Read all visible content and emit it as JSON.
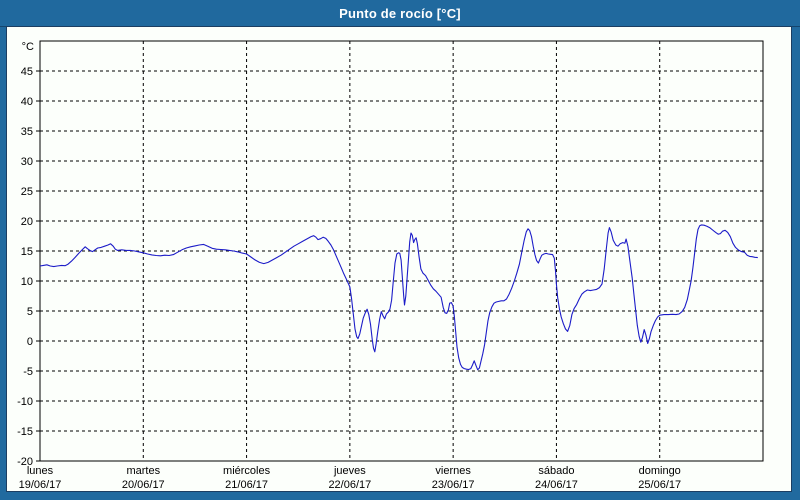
{
  "window": {
    "title": "Punto de rocío [°C]"
  },
  "colors": {
    "titlebar_bg": "#20699e",
    "frame_bg": "#216a9f",
    "panel_bg": "#fcfffb",
    "panel_border": "#1c3e62",
    "grid": "#000000",
    "axis": "#000000",
    "text": "#000000",
    "line": "#1c1cc8"
  },
  "y_axis": {
    "unit": "°C",
    "min": -20,
    "max": 50,
    "tick_step": 5,
    "tick_labels": [
      "45",
      "40",
      "35",
      "30",
      "25",
      "20",
      "15",
      "10",
      "5",
      "0",
      "-5",
      "-10",
      "-15",
      "-20"
    ],
    "tick_values": [
      45,
      40,
      35,
      30,
      25,
      20,
      15,
      10,
      5,
      0,
      -5,
      -10,
      -15,
      -20
    ]
  },
  "x_axis": {
    "days": [
      {
        "name": "lunes",
        "date": "19/06/17"
      },
      {
        "name": "martes",
        "date": "20/06/17"
      },
      {
        "name": "miércoles",
        "date": "21/06/17"
      },
      {
        "name": "jueves",
        "date": "22/06/17"
      },
      {
        "name": "viernes",
        "date": "23/06/17"
      },
      {
        "name": "sábado",
        "date": "24/06/17"
      },
      {
        "name": "domingo",
        "date": "25/06/17"
      }
    ]
  },
  "chart_data": {
    "type": "line",
    "title": "Punto de rocío [°C]",
    "ylabel": "°C",
    "ylim": [
      -20,
      50
    ],
    "x_unit": "hours from lunes 19/06/17 00:00",
    "x_range": [
      0,
      168
    ],
    "grid": "dashed",
    "legend": "none",
    "series": [
      {
        "name": "punto_de_rocio",
        "color": "#1c1cc8",
        "points": [
          [
            0,
            12.5
          ],
          [
            0.8,
            12.6
          ],
          [
            1.6,
            12.7
          ],
          [
            2.4,
            12.5
          ],
          [
            3.2,
            12.4
          ],
          [
            4,
            12.5
          ],
          [
            5,
            12.6
          ],
          [
            5.8,
            12.55
          ],
          [
            6.5,
            12.8
          ],
          [
            7.3,
            13.3
          ],
          [
            8.1,
            13.9
          ],
          [
            9,
            14.6
          ],
          [
            9.8,
            15.2
          ],
          [
            10.5,
            15.7
          ],
          [
            11,
            15.4
          ],
          [
            11.6,
            15.1
          ],
          [
            12.2,
            14.9
          ],
          [
            12.8,
            15.2
          ],
          [
            13.4,
            15.5
          ],
          [
            14.2,
            15.6
          ],
          [
            15,
            15.8
          ],
          [
            15.8,
            16.0
          ],
          [
            16.4,
            16.2
          ],
          [
            17,
            15.8
          ],
          [
            17.5,
            15.3
          ],
          [
            18,
            15.1
          ],
          [
            19,
            15.2
          ],
          [
            20,
            15.1
          ],
          [
            21,
            15.1
          ],
          [
            22,
            15.0
          ],
          [
            23,
            14.85
          ],
          [
            24,
            14.7
          ],
          [
            25,
            14.5
          ],
          [
            26,
            14.35
          ],
          [
            27,
            14.25
          ],
          [
            28,
            14.2
          ],
          [
            29,
            14.3
          ],
          [
            30,
            14.25
          ],
          [
            31,
            14.4
          ],
          [
            32,
            14.8
          ],
          [
            33,
            15.2
          ],
          [
            34,
            15.5
          ],
          [
            35,
            15.7
          ],
          [
            36,
            15.85
          ],
          [
            37,
            16.0
          ],
          [
            38,
            16.1
          ],
          [
            39,
            15.8
          ],
          [
            40,
            15.45
          ],
          [
            41,
            15.3
          ],
          [
            42,
            15.25
          ],
          [
            43,
            15.2
          ],
          [
            44,
            15.1
          ],
          [
            45,
            15.0
          ],
          [
            46,
            14.85
          ],
          [
            47,
            14.65
          ],
          [
            48,
            14.5
          ],
          [
            49,
            14.0
          ],
          [
            50,
            13.5
          ],
          [
            51,
            13.1
          ],
          [
            52,
            12.9
          ],
          [
            53,
            13.1
          ],
          [
            54,
            13.5
          ],
          [
            55,
            13.9
          ],
          [
            56,
            14.3
          ],
          [
            57,
            14.8
          ],
          [
            58,
            15.3
          ],
          [
            59,
            15.8
          ],
          [
            60,
            16.2
          ],
          [
            61,
            16.6
          ],
          [
            62,
            17.0
          ],
          [
            63,
            17.4
          ],
          [
            63.6,
            17.55
          ],
          [
            64.1,
            17.3
          ],
          [
            64.6,
            16.9
          ],
          [
            65.2,
            17.05
          ],
          [
            65.8,
            17.3
          ],
          [
            66.4,
            17.1
          ],
          [
            67,
            16.6
          ],
          [
            67.6,
            16.0
          ],
          [
            68.2,
            15.2
          ],
          [
            68.8,
            14.2
          ],
          [
            69.4,
            13.2
          ],
          [
            70,
            12.2
          ],
          [
            70.6,
            11.2
          ],
          [
            71.2,
            10.3
          ],
          [
            72,
            9.0
          ],
          [
            72.4,
            7.0
          ],
          [
            72.8,
            4.5
          ],
          [
            73.2,
            2.0
          ],
          [
            73.6,
            0.7
          ],
          [
            73.9,
            0.4
          ],
          [
            74.3,
            1.2
          ],
          [
            74.7,
            2.5
          ],
          [
            75.1,
            3.8
          ],
          [
            75.6,
            4.7
          ],
          [
            76,
            5.3
          ],
          [
            76.4,
            4.4
          ],
          [
            76.8,
            2.8
          ],
          [
            77.2,
            0.3
          ],
          [
            77.5,
            -1.2
          ],
          [
            77.8,
            -1.8
          ],
          [
            78.1,
            -0.5
          ],
          [
            78.5,
            1.6
          ],
          [
            78.9,
            3.6
          ],
          [
            79.3,
            4.9
          ],
          [
            79.7,
            4.2
          ],
          [
            80.1,
            3.7
          ],
          [
            80.5,
            4.5
          ],
          [
            80.9,
            4.8
          ],
          [
            81.3,
            5.3
          ],
          [
            81.7,
            6.8
          ],
          [
            82.1,
            10.0
          ],
          [
            82.5,
            13.0
          ],
          [
            82.9,
            14.5
          ],
          [
            83.3,
            14.7
          ],
          [
            83.6,
            14.6
          ],
          [
            83.9,
            13.5
          ],
          [
            84.2,
            10.5
          ],
          [
            84.5,
            7.5
          ],
          [
            84.7,
            6.0
          ],
          [
            85,
            7.5
          ],
          [
            85.3,
            10.5
          ],
          [
            85.6,
            13.5
          ],
          [
            85.9,
            16.5
          ],
          [
            86.2,
            18.0
          ],
          [
            86.5,
            17.6
          ],
          [
            86.8,
            16.4
          ],
          [
            87.1,
            16.9
          ],
          [
            87.4,
            17.2
          ],
          [
            87.7,
            16.2
          ],
          [
            88.1,
            14.0
          ],
          [
            88.5,
            12.0
          ],
          [
            89,
            11.3
          ],
          [
            89.6,
            10.9
          ],
          [
            90.2,
            10.1
          ],
          [
            90.8,
            9.3
          ],
          [
            91.4,
            8.7
          ],
          [
            92,
            8.3
          ],
          [
            92.6,
            7.8
          ],
          [
            93.2,
            7.3
          ],
          [
            93.7,
            5.6
          ],
          [
            94.1,
            4.7
          ],
          [
            94.5,
            4.6
          ],
          [
            94.9,
            5.2
          ],
          [
            95.2,
            6.3
          ],
          [
            95.6,
            6.4
          ],
          [
            96,
            5.8
          ],
          [
            96.3,
            4.0
          ],
          [
            96.6,
            1.5
          ],
          [
            96.9,
            -1.0
          ],
          [
            97.3,
            -2.8
          ],
          [
            97.7,
            -3.9
          ],
          [
            98.1,
            -4.4
          ],
          [
            98.6,
            -4.6
          ],
          [
            99.1,
            -4.7
          ],
          [
            99.6,
            -4.75
          ],
          [
            100.1,
            -4.6
          ],
          [
            100.5,
            -4.0
          ],
          [
            100.9,
            -3.3
          ],
          [
            101.3,
            -4.1
          ],
          [
            101.7,
            -4.8
          ],
          [
            102.1,
            -4.5
          ],
          [
            102.5,
            -3.3
          ],
          [
            102.9,
            -2.1
          ],
          [
            103.3,
            -0.6
          ],
          [
            103.7,
            1.4
          ],
          [
            104.1,
            3.4
          ],
          [
            104.5,
            4.7
          ],
          [
            105,
            5.7
          ],
          [
            105.5,
            6.3
          ],
          [
            106,
            6.5
          ],
          [
            106.6,
            6.6
          ],
          [
            107.2,
            6.7
          ],
          [
            107.8,
            6.7
          ],
          [
            108.4,
            7.0
          ],
          [
            109,
            7.8
          ],
          [
            109.6,
            8.8
          ],
          [
            110.2,
            10.0
          ],
          [
            110.8,
            11.3
          ],
          [
            111.4,
            12.8
          ],
          [
            112,
            15.0
          ],
          [
            112.5,
            16.8
          ],
          [
            113,
            18.2
          ],
          [
            113.4,
            18.7
          ],
          [
            113.8,
            18.4
          ],
          [
            114.2,
            17.4
          ],
          [
            114.6,
            15.8
          ],
          [
            115,
            14.4
          ],
          [
            115.4,
            13.4
          ],
          [
            115.8,
            13.0
          ],
          [
            116.2,
            13.7
          ],
          [
            116.6,
            14.3
          ],
          [
            117.1,
            14.5
          ],
          [
            117.6,
            14.6
          ],
          [
            118.1,
            14.5
          ],
          [
            118.6,
            14.45
          ],
          [
            119.1,
            14.4
          ],
          [
            119.5,
            13.8
          ],
          [
            119.8,
            11.5
          ],
          [
            120,
            9.5
          ],
          [
            120.3,
            7.2
          ],
          [
            120.7,
            5.4
          ],
          [
            121.1,
            4.0
          ],
          [
            121.6,
            2.9
          ],
          [
            122.1,
            2.0
          ],
          [
            122.6,
            1.6
          ],
          [
            123.1,
            2.6
          ],
          [
            123.6,
            4.4
          ],
          [
            124.1,
            5.4
          ],
          [
            124.7,
            6.1
          ],
          [
            125.3,
            7.0
          ],
          [
            125.9,
            7.8
          ],
          [
            126.5,
            8.2
          ],
          [
            127.2,
            8.5
          ],
          [
            127.9,
            8.4
          ],
          [
            128.6,
            8.5
          ],
          [
            129.3,
            8.6
          ],
          [
            130,
            8.9
          ],
          [
            130.6,
            9.5
          ],
          [
            131.1,
            12.0
          ],
          [
            131.6,
            15.5
          ],
          [
            132,
            18.0
          ],
          [
            132.3,
            18.9
          ],
          [
            132.7,
            18.2
          ],
          [
            133.2,
            16.8
          ],
          [
            133.8,
            16.0
          ],
          [
            134.3,
            15.8
          ],
          [
            134.8,
            16.2
          ],
          [
            135.4,
            16.4
          ],
          [
            135.9,
            16.3
          ],
          [
            136.2,
            17.0
          ],
          [
            136.6,
            15.8
          ],
          [
            137.1,
            13.2
          ],
          [
            137.6,
            10.5
          ],
          [
            138,
            7.8
          ],
          [
            138.4,
            5.2
          ],
          [
            138.8,
            2.6
          ],
          [
            139.2,
            0.8
          ],
          [
            139.6,
            -0.2
          ],
          [
            140,
            0.6
          ],
          [
            140.4,
            1.9
          ],
          [
            140.8,
            1.0
          ],
          [
            141.2,
            -0.4
          ],
          [
            141.6,
            0.4
          ],
          [
            142,
            1.6
          ],
          [
            142.5,
            2.6
          ],
          [
            143,
            3.4
          ],
          [
            143.5,
            4.0
          ],
          [
            144,
            4.3
          ],
          [
            145,
            4.4
          ],
          [
            146,
            4.4
          ],
          [
            147,
            4.45
          ],
          [
            147.8,
            4.4
          ],
          [
            148.5,
            4.5
          ],
          [
            149.2,
            4.9
          ],
          [
            149.8,
            5.6
          ],
          [
            150.4,
            6.9
          ],
          [
            150.9,
            8.6
          ],
          [
            151.3,
            10.0
          ],
          [
            151.7,
            12.2
          ],
          [
            152.1,
            14.6
          ],
          [
            152.5,
            17.0
          ],
          [
            152.9,
            18.6
          ],
          [
            153.3,
            19.2
          ],
          [
            153.7,
            19.35
          ],
          [
            154.3,
            19.3
          ],
          [
            154.9,
            19.15
          ],
          [
            155.6,
            18.9
          ],
          [
            156.3,
            18.5
          ],
          [
            157,
            18.1
          ],
          [
            157.6,
            17.8
          ],
          [
            158.1,
            17.9
          ],
          [
            158.6,
            18.3
          ],
          [
            159.2,
            18.45
          ],
          [
            159.8,
            18.1
          ],
          [
            160.4,
            17.4
          ],
          [
            161,
            16.3
          ],
          [
            161.6,
            15.6
          ],
          [
            162.3,
            15.15
          ],
          [
            163,
            14.9
          ],
          [
            163.7,
            14.8
          ],
          [
            164.3,
            14.3
          ],
          [
            164.9,
            14.1
          ],
          [
            165.5,
            14.05
          ],
          [
            166.1,
            13.95
          ],
          [
            166.8,
            13.9
          ]
        ]
      }
    ]
  }
}
